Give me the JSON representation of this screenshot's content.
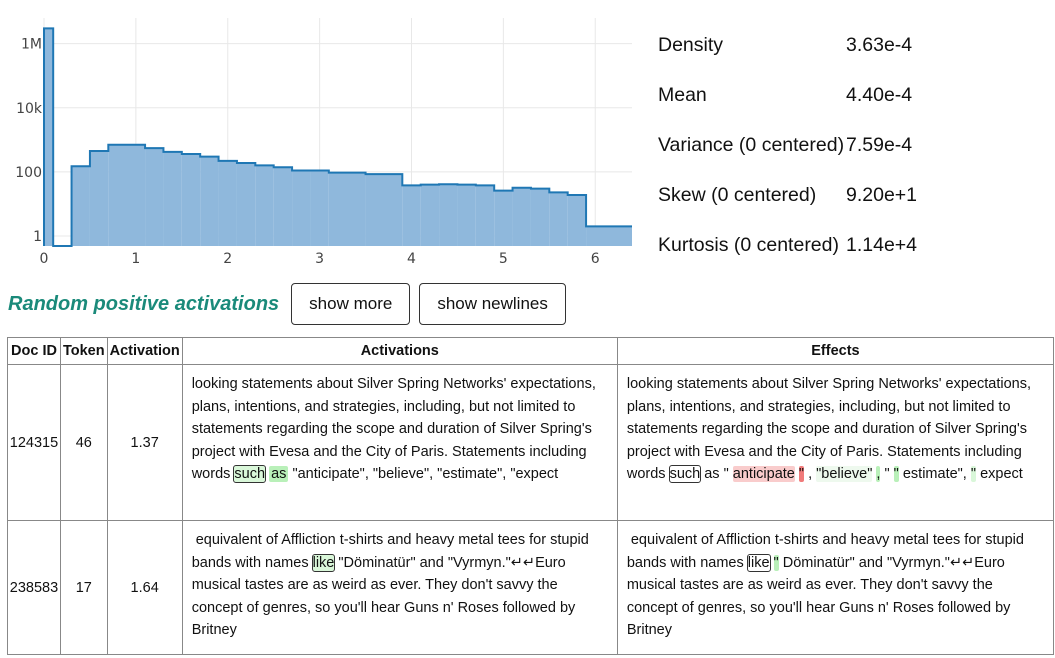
{
  "chart_data": {
    "type": "histogram",
    "yscale": "log",
    "x_ticks": [
      "0",
      "1",
      "2",
      "3",
      "4",
      "5",
      "6"
    ],
    "y_ticks": [
      "1M",
      "10k",
      "100",
      "1"
    ],
    "xlim": [
      0,
      6.4
    ],
    "series": [
      {
        "color": "#1f77b4",
        "fill": "#8fb8dc",
        "bins": [
          {
            "x0": 0.0,
            "x1": 0.1,
            "count": 3000000
          },
          {
            "x0": 0.1,
            "x1": 0.3,
            "count": 0
          },
          {
            "x0": 0.3,
            "x1": 0.5,
            "count": 150
          },
          {
            "x0": 0.5,
            "x1": 0.7,
            "count": 450
          },
          {
            "x0": 0.7,
            "x1": 1.1,
            "count": 700
          },
          {
            "x0": 1.1,
            "x1": 1.3,
            "count": 550
          },
          {
            "x0": 1.3,
            "x1": 1.5,
            "count": 420
          },
          {
            "x0": 1.5,
            "x1": 1.7,
            "count": 360
          },
          {
            "x0": 1.7,
            "x1": 1.9,
            "count": 300
          },
          {
            "x0": 1.9,
            "x1": 2.1,
            "count": 220
          },
          {
            "x0": 2.1,
            "x1": 2.3,
            "count": 190
          },
          {
            "x0": 2.3,
            "x1": 2.5,
            "count": 160
          },
          {
            "x0": 2.5,
            "x1": 2.7,
            "count": 140
          },
          {
            "x0": 2.7,
            "x1": 2.9,
            "count": 110
          },
          {
            "x0": 2.9,
            "x1": 3.1,
            "count": 110
          },
          {
            "x0": 3.1,
            "x1": 3.5,
            "count": 95
          },
          {
            "x0": 3.5,
            "x1": 3.9,
            "count": 85
          },
          {
            "x0": 3.9,
            "x1": 4.1,
            "count": 38
          },
          {
            "x0": 4.1,
            "x1": 4.3,
            "count": 40
          },
          {
            "x0": 4.3,
            "x1": 4.5,
            "count": 41
          },
          {
            "x0": 4.5,
            "x1": 4.7,
            "count": 40
          },
          {
            "x0": 4.7,
            "x1": 4.9,
            "count": 38
          },
          {
            "x0": 4.9,
            "x1": 5.1,
            "count": 26
          },
          {
            "x0": 5.1,
            "x1": 5.3,
            "count": 32
          },
          {
            "x0": 5.3,
            "x1": 5.5,
            "count": 30
          },
          {
            "x0": 5.5,
            "x1": 5.7,
            "count": 23
          },
          {
            "x0": 5.7,
            "x1": 5.9,
            "count": 19
          },
          {
            "x0": 5.9,
            "x1": 6.4,
            "count": 2
          }
        ]
      }
    ]
  },
  "stats": [
    {
      "name": "Density",
      "value": "3.63e-4"
    },
    {
      "name": "Mean",
      "value": "4.40e-4"
    },
    {
      "name": "Variance (0 centered)",
      "value": "7.59e-4"
    },
    {
      "name": "Skew (0 centered)",
      "value": "9.20e+1"
    },
    {
      "name": "Kurtosis (0 centered)",
      "value": "1.14e+4"
    }
  ],
  "controls": {
    "section_title": "Random positive activations",
    "show_more": "show more",
    "show_newlines": "show newlines"
  },
  "table": {
    "headers": {
      "doc_id": "Doc ID",
      "token": "Token",
      "activation": "Activation",
      "activations": "Activations",
      "effects": "Effects"
    },
    "rows": [
      {
        "doc_id": "124315",
        "token": "46",
        "activation": "1.37",
        "activations": [
          {
            "t": "looking statements about Silver Spring Networks' expectations, plans, intentions, and strategies, including, but not limited to statements regarding the scope and duration of Silver Spring's project with Evesa and the City of Paris. Statements including words"
          },
          {
            "t": "such",
            "bg": "#d9f7d9",
            "boxed": true
          },
          {
            "t": "as",
            "bg": "#b9f0b9",
            "pad": true
          },
          {
            "t": "\"anticipate\", \"believe\", \"estimate\", \"expect"
          }
        ],
        "effects": [
          {
            "t": "looking statements about Silver Spring Networks' expectations, plans, intentions, and strategies, including, but not limited to statements regarding the scope and duration of Silver Spring's project with Evesa and the City of Paris. Statements including words"
          },
          {
            "t": "such",
            "boxed": true
          },
          {
            "t": "as"
          },
          {
            "t": "\""
          },
          {
            "t": "anticipate",
            "bg": "#f9cccc"
          },
          {
            "t": "\"",
            "bg": "#f07a7a"
          },
          {
            "t": ","
          },
          {
            "t": "\"believe\"",
            "bg": "#eef9ee"
          },
          {
            "t": ",",
            "bg": "#b9f0b9"
          },
          {
            "t": "\""
          },
          {
            "t": "\"",
            "bg": "#b9f0b9"
          },
          {
            "t": "estimate\","
          },
          {
            "t": "\"",
            "bg": "#d9f7d9"
          },
          {
            "t": "expect"
          }
        ]
      },
      {
        "doc_id": "238583",
        "token": "17",
        "activation": "1.64",
        "activations": [
          {
            "t": " equivalent of Affliction t-shirts and heavy metal tees for stupid bands with names"
          },
          {
            "t": "like",
            "bg": "#d9f7d9",
            "boxed": true
          },
          {
            "t": "\"Döminatür\" and \"Vyrmyn.\"↵↵Euro musical tastes are as weird as ever. They don't savvy the concept of genres, so you'll hear Guns n' Roses followed by Britney"
          }
        ],
        "effects": [
          {
            "t": " equivalent of Affliction t-shirts and heavy metal tees for stupid bands with names"
          },
          {
            "t": "like",
            "boxed": true
          },
          {
            "t": "\"",
            "bg": "#b9f0b9"
          },
          {
            "t": "Döminatür\" and \"Vyrmyn.\"↵↵Euro musical tastes are as weird as ever. They don't savvy the concept of genres, so you'll hear Guns n' Roses followed by Britney"
          }
        ]
      }
    ]
  }
}
